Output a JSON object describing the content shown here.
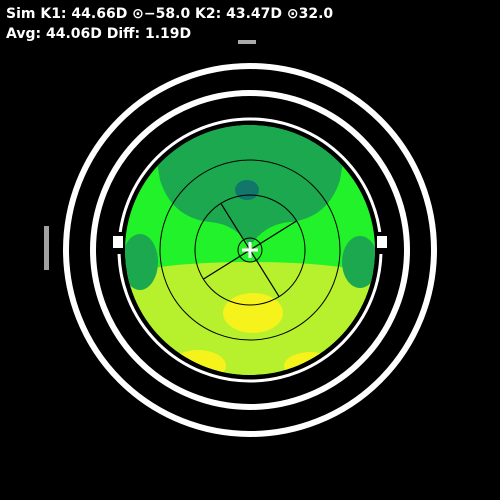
{
  "readout": {
    "line1": "Sim K1: 44.66D ⊙−58.0 K2: 43.47D ⊙32.0",
    "line2": "Avg: 44.06D Diff: 1.19D"
  },
  "map": {
    "sim_k1_diopters": 44.66,
    "sim_k1_axis_deg": -58.0,
    "sim_k2_diopters": 43.47,
    "sim_k2_axis_deg": 32.0,
    "avg_k_diopters": 44.06,
    "diff_diopters": 1.19,
    "colors": {
      "background": "#000000",
      "ring": "#ffffff",
      "steep_teal": "#12766a",
      "dark_green": "#1ba84e",
      "bright_green": "#22f22a",
      "lime": "#b7f02c",
      "yellow": "#f5f21c",
      "crosshair": "#ffffff",
      "axis_lines": "#000000"
    }
  }
}
